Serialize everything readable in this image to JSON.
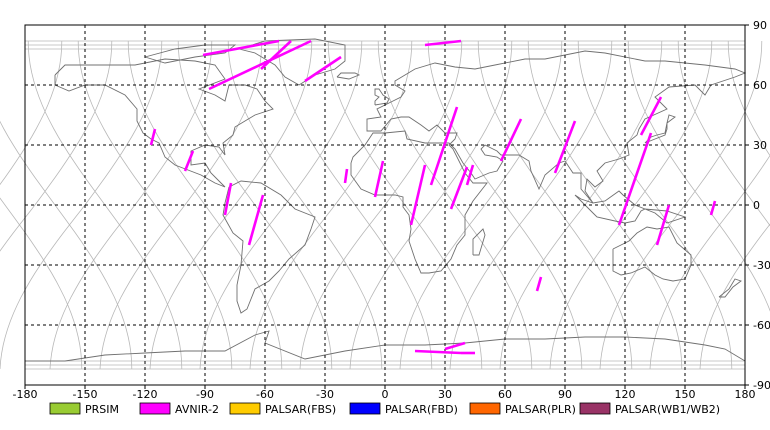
{
  "map": {
    "lon_ticks": [
      "-180",
      "-150",
      "-120",
      "-90",
      "-60",
      "-30",
      "0",
      "30",
      "60",
      "90",
      "120",
      "150",
      "180"
    ],
    "lat_ticks": [
      "90",
      "60",
      "30",
      "0",
      "-30",
      "-60",
      "-90"
    ],
    "lon_range": [
      -180,
      180
    ],
    "lat_range": [
      -90,
      90
    ],
    "grid": true
  },
  "legend": [
    {
      "label": "PRSIM",
      "color": "#99cc33"
    },
    {
      "label": "AVNIR-2",
      "color": "#ff00ff"
    },
    {
      "label": "PALSAR(FBS)",
      "color": "#ffcc00"
    },
    {
      "label": "PALSAR(FBD)",
      "color": "#0000ff"
    },
    {
      "label": "PALSAR(PLR)",
      "color": "#ff6600"
    },
    {
      "label": "PALSAR(WB1/WB2)",
      "color": "#993366"
    }
  ],
  "colors": {
    "swath": "#ff00ff",
    "orbit": "#b8b8b8",
    "coastline": "#707070",
    "grid": "#000000"
  },
  "swaths": [
    {
      "from": [
        -91,
        75
      ],
      "to": [
        -53,
        82
      ]
    },
    {
      "from": [
        -88,
        58
      ],
      "to": [
        -37,
        82
      ]
    },
    {
      "from": [
        -62,
        68
      ],
      "to": [
        -47,
        82
      ]
    },
    {
      "from": [
        -40,
        62
      ],
      "to": [
        -22,
        74
      ]
    },
    {
      "from": [
        20,
        80
      ],
      "to": [
        38,
        82
      ]
    },
    {
      "from": [
        -117,
        30
      ],
      "to": [
        -115,
        38
      ]
    },
    {
      "from": [
        -100,
        17
      ],
      "to": [
        -96,
        27
      ]
    },
    {
      "from": [
        -80,
        -5
      ],
      "to": [
        -77,
        11
      ]
    },
    {
      "from": [
        -68,
        -20
      ],
      "to": [
        -61,
        5
      ]
    },
    {
      "from": [
        -20,
        11
      ],
      "to": [
        -19,
        18
      ]
    },
    {
      "from": [
        -5,
        4
      ],
      "to": [
        -1,
        22
      ]
    },
    {
      "from": [
        13,
        -10
      ],
      "to": [
        20,
        20
      ]
    },
    {
      "from": [
        23,
        10
      ],
      "to": [
        36,
        49
      ]
    },
    {
      "from": [
        33,
        -2
      ],
      "to": [
        41,
        19
      ]
    },
    {
      "from": [
        41,
        10
      ],
      "to": [
        44,
        20
      ]
    },
    {
      "from": [
        58,
        22
      ],
      "to": [
        68,
        43
      ]
    },
    {
      "from": [
        76,
        -43
      ],
      "to": [
        78,
        -36
      ]
    },
    {
      "from": [
        85,
        16
      ],
      "to": [
        95,
        42
      ]
    },
    {
      "from": [
        117,
        -10
      ],
      "to": [
        133,
        36
      ]
    },
    {
      "from": [
        128,
        35
      ],
      "to": [
        138,
        54
      ]
    },
    {
      "from": [
        136,
        -20
      ],
      "to": [
        142,
        0
      ]
    },
    {
      "from": [
        163,
        -5
      ],
      "to": [
        165,
        2
      ]
    },
    {
      "from": [
        15,
        -73
      ],
      "to": [
        38,
        -74
      ]
    },
    {
      "from": [
        38,
        -74
      ],
      "to": [
        45,
        -74
      ]
    },
    {
      "from": [
        30,
        -72
      ],
      "to": [
        40,
        -69
      ]
    }
  ]
}
